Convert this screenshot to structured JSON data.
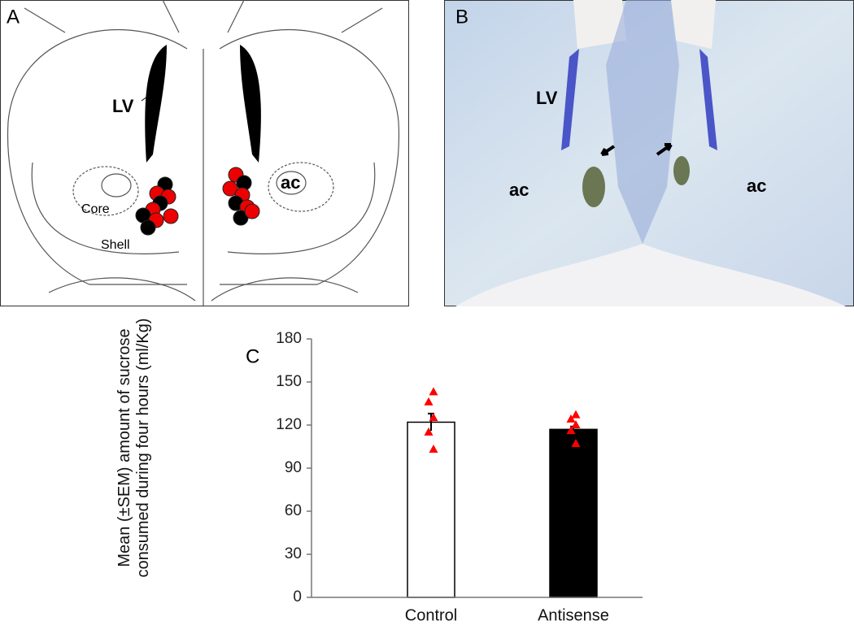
{
  "panel_a": {
    "label": "A",
    "lv": "LV",
    "ac": "ac",
    "core": "Core",
    "shell": "Shell"
  },
  "panel_b": {
    "label": "B",
    "lv": "LV",
    "ac_left": "ac",
    "ac_right": "ac"
  },
  "chart_data": {
    "type": "bar",
    "panel_label": "C",
    "ylabel": "Mean (±SEM) amount of sucrose consumed during four hours (ml/Kg)",
    "categories": [
      "Control",
      "Antisense"
    ],
    "values": [
      122,
      117
    ],
    "errors": [
      6,
      2
    ],
    "colors": [
      "#ffffff",
      "#000000"
    ],
    "points": [
      [
        143,
        136,
        125,
        115,
        103
      ],
      [
        127,
        124,
        120,
        116,
        107
      ]
    ],
    "point_color": "#ff0000",
    "ylim": [
      0,
      180
    ],
    "yticks": [
      0,
      30,
      60,
      90,
      120,
      150,
      180
    ]
  }
}
